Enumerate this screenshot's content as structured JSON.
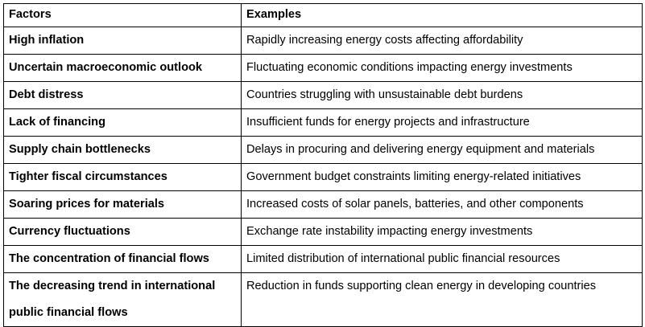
{
  "table": {
    "headers": [
      "Factors",
      "Examples"
    ],
    "rows": [
      {
        "factor": "High inflation",
        "example": "Rapidly increasing energy costs affecting affordability"
      },
      {
        "factor": "Uncertain macroeconomic outlook",
        "example": "Fluctuating economic conditions impacting energy investments"
      },
      {
        "factor": "Debt distress",
        "example": "Countries struggling with unsustainable debt burdens"
      },
      {
        "factor": "Lack of financing",
        "example": "Insufficient funds for energy projects and infrastructure"
      },
      {
        "factor": "Supply chain bottlenecks",
        "example": "Delays in procuring and delivering energy equipment and materials"
      },
      {
        "factor": "Tighter fiscal circumstances",
        "example": "Government budget constraints limiting energy-related initiatives"
      },
      {
        "factor": "Soaring prices for materials",
        "example": "Increased costs of solar panels, batteries, and other components"
      },
      {
        "factor": "Currency fluctuations",
        "example": "Exchange rate instability impacting energy investments"
      },
      {
        "factor": "The concentration of financial flows",
        "example": "Limited distribution of international public financial resources"
      },
      {
        "factor": "The decreasing trend in international public financial flows",
        "example": "Reduction in funds supporting clean energy in developing countries"
      }
    ]
  }
}
